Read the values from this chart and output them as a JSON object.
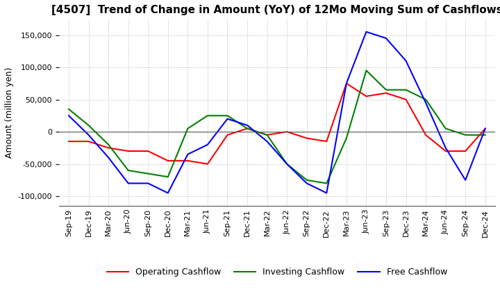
{
  "title": "[4507]  Trend of Change in Amount (YoY) of 12Mo Moving Sum of Cashflows",
  "ylabel": "Amount (million yen)",
  "title_fontsize": 11,
  "label_fontsize": 9,
  "tick_fontsize": 8,
  "x_labels": [
    "Sep-19",
    "Dec-19",
    "Mar-20",
    "Jun-20",
    "Sep-20",
    "Dec-20",
    "Mar-21",
    "Jun-21",
    "Sep-21",
    "Dec-21",
    "Mar-22",
    "Jun-22",
    "Sep-22",
    "Dec-22",
    "Mar-23",
    "Jun-23",
    "Sep-23",
    "Dec-23",
    "Mar-24",
    "Jun-24",
    "Sep-24",
    "Dec-24"
  ],
  "operating": [
    -15000,
    -15000,
    -25000,
    -30000,
    -30000,
    -45000,
    -45000,
    -50000,
    -5000,
    5000,
    -5000,
    0,
    -10000,
    -15000,
    75000,
    55000,
    60000,
    50000,
    -5000,
    -30000,
    -30000,
    5000
  ],
  "investing": [
    35000,
    10000,
    -20000,
    -60000,
    -65000,
    -70000,
    5000,
    25000,
    25000,
    5000,
    -5000,
    -50000,
    -75000,
    -80000,
    -10000,
    95000,
    65000,
    65000,
    50000,
    5000,
    -5000,
    -5000
  ],
  "free": [
    25000,
    -5000,
    -40000,
    -80000,
    -80000,
    -95000,
    -35000,
    -20000,
    20000,
    10000,
    -15000,
    -50000,
    -80000,
    -95000,
    75000,
    155000,
    145000,
    110000,
    45000,
    -25000,
    -75000,
    5000
  ],
  "operating_color": "#ff0000",
  "investing_color": "#008000",
  "free_color": "#0000ff",
  "ylim": [
    -115000,
    175000
  ],
  "yticks": [
    -100000,
    -50000,
    0,
    50000,
    100000,
    150000
  ],
  "grid_color": "#aaaaaa",
  "grid_style": "dotted"
}
